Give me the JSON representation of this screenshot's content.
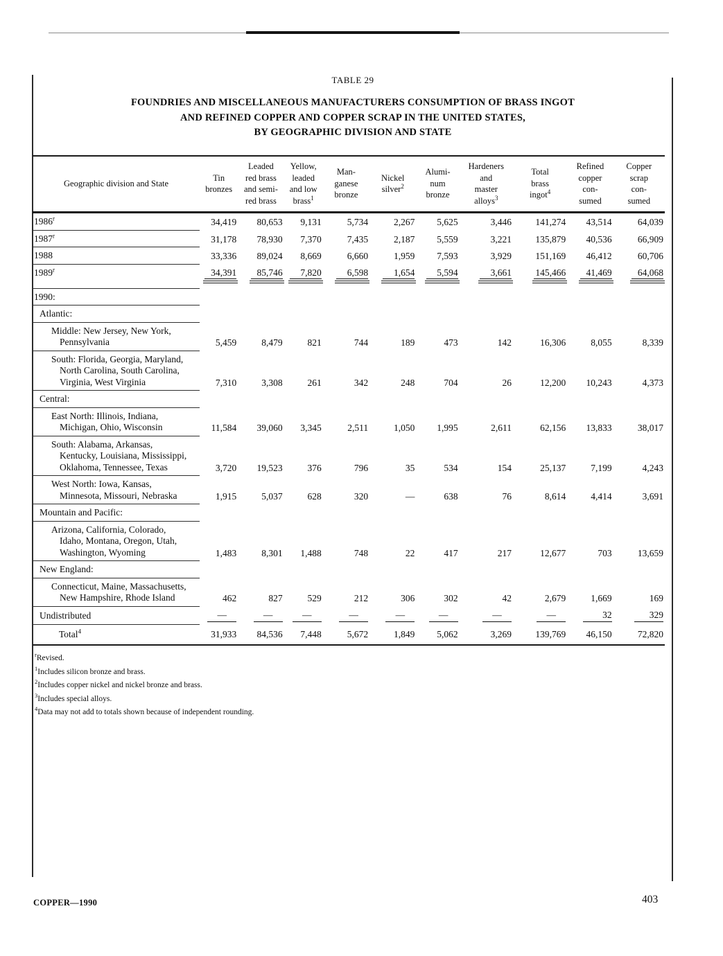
{
  "page": {
    "table_label": "TABLE 29",
    "title_lines": [
      "FOUNDRIES AND MISCELLANEOUS MANUFACTURERS CONSUMPTION OF BRASS INGOT",
      "AND REFINED COPPER AND COPPER SCRAP IN THE UNITED STATES,",
      "BY GEOGRAPHIC DIVISION AND STATE"
    ],
    "footer_left": "COPPER—1990",
    "page_number": "403"
  },
  "table": {
    "stub_header": "Geographic division and State",
    "columns": [
      {
        "lines": [
          "Tin",
          "bronzes"
        ]
      },
      {
        "lines": [
          "Leaded",
          "red brass",
          "and semi-",
          "red brass"
        ]
      },
      {
        "lines": [
          "Yellow,",
          "leaded",
          "and low",
          "brass"
        ],
        "sup": "1"
      },
      {
        "lines": [
          "Man-",
          "ganese",
          "bronze"
        ]
      },
      {
        "lines": [
          "Nickel",
          "silver"
        ],
        "sup": "2"
      },
      {
        "lines": [
          "Alumi-",
          "num",
          "bronze"
        ]
      },
      {
        "lines": [
          "Hardeners",
          "and",
          "master",
          "alloys"
        ],
        "sup": "3"
      },
      {
        "lines": [
          "Total",
          "brass",
          "ingot"
        ],
        "sup": "4"
      },
      {
        "lines": [
          "Refined",
          "copper",
          "con-",
          "sumed"
        ]
      },
      {
        "lines": [
          "Copper",
          "scrap",
          "con-",
          "sumed"
        ]
      }
    ],
    "rows": [
      {
        "type": "year",
        "label_lines": [
          "1986"
        ],
        "sup": "r",
        "values": [
          "34,419",
          "80,653",
          "9,131",
          "5,734",
          "2,267",
          "5,625",
          "3,446",
          "141,274",
          "43,514",
          "64,039"
        ]
      },
      {
        "type": "year",
        "label_lines": [
          "1987"
        ],
        "sup": "r",
        "values": [
          "31,178",
          "78,930",
          "7,370",
          "7,435",
          "2,187",
          "5,559",
          "3,221",
          "135,879",
          "40,536",
          "66,909"
        ]
      },
      {
        "type": "year",
        "label_lines": [
          "1988"
        ],
        "values": [
          "33,336",
          "89,024",
          "8,669",
          "6,660",
          "1,959",
          "7,593",
          "3,929",
          "151,169",
          "46,412",
          "60,706"
        ]
      },
      {
        "type": "year",
        "label_lines": [
          "1989"
        ],
        "sup": "r",
        "value_style": "double-rule",
        "values": [
          "34,391",
          "85,746",
          "7,820",
          "6,598",
          "1,654",
          "5,594",
          "3,661",
          "145,466",
          "41,469",
          "64,068"
        ]
      },
      {
        "type": "year",
        "label_lines": [
          "1990:"
        ]
      },
      {
        "type": "section",
        "label_lines": [
          "Atlantic:"
        ]
      },
      {
        "type": "data",
        "label_lines": [
          "Middle: New Jersey, New York,",
          "Pennsylvania"
        ],
        "values": [
          "5,459",
          "8,479",
          "821",
          "744",
          "189",
          "473",
          "142",
          "16,306",
          "8,055",
          "8,339"
        ]
      },
      {
        "type": "data",
        "label_lines": [
          "South: Florida, Georgia, Maryland,",
          "North Carolina, South Carolina,",
          "Virginia, West Virginia"
        ],
        "values": [
          "7,310",
          "3,308",
          "261",
          "342",
          "248",
          "704",
          "26",
          "12,200",
          "10,243",
          "4,373"
        ]
      },
      {
        "type": "section",
        "label_lines": [
          "Central:"
        ]
      },
      {
        "type": "data",
        "label_lines": [
          "East North: Illinois, Indiana,",
          "Michigan, Ohio, Wisconsin"
        ],
        "values": [
          "11,584",
          "39,060",
          "3,345",
          "2,511",
          "1,050",
          "1,995",
          "2,611",
          "62,156",
          "13,833",
          "38,017"
        ]
      },
      {
        "type": "data",
        "label_lines": [
          "South: Alabama, Arkansas,",
          "Kentucky, Louisiana, Mississippi,",
          "Oklahoma, Tennessee, Texas"
        ],
        "values": [
          "3,720",
          "19,523",
          "376",
          "796",
          "35",
          "534",
          "154",
          "25,137",
          "7,199",
          "4,243"
        ]
      },
      {
        "type": "data",
        "label_lines": [
          "West North: Iowa, Kansas,",
          "Minnesota, Missouri, Nebraska"
        ],
        "values": [
          "1,915",
          "5,037",
          "628",
          "320",
          "—",
          "638",
          "76",
          "8,614",
          "4,414",
          "3,691"
        ]
      },
      {
        "type": "section",
        "label_lines": [
          "Mountain and Pacific:"
        ]
      },
      {
        "type": "data",
        "label_lines": [
          "Arizona, California, Colorado,",
          "Idaho, Montana, Oregon, Utah,",
          "Washington, Wyoming"
        ],
        "values": [
          "1,483",
          "8,301",
          "1,488",
          "748",
          "22",
          "417",
          "217",
          "12,677",
          "703",
          "13,659"
        ]
      },
      {
        "type": "section",
        "label_lines": [
          "New England:"
        ]
      },
      {
        "type": "data",
        "label_lines": [
          "Connecticut, Maine, Massachusetts,",
          "New Hampshire, Rhode Island"
        ],
        "values": [
          "462",
          "827",
          "529",
          "212",
          "306",
          "302",
          "42",
          "2,679",
          "1,669",
          "169"
        ]
      },
      {
        "type": "section",
        "label_lines": [
          "Undistributed"
        ],
        "value_style": "rule-under",
        "values": [
          "—",
          "—",
          "—",
          "—",
          "—",
          "—",
          "—",
          "—",
          "32",
          "329"
        ]
      },
      {
        "type": "total",
        "label_lines": [
          "Total"
        ],
        "sup": "4",
        "values": [
          "31,933",
          "84,536",
          "7,448",
          "5,672",
          "1,849",
          "5,062",
          "3,269",
          "139,769",
          "46,150",
          "72,820"
        ]
      }
    ]
  },
  "footnotes": [
    {
      "sup": "r",
      "text": "Revised."
    },
    {
      "sup": "1",
      "text": "Includes silicon bronze and brass."
    },
    {
      "sup": "2",
      "text": "Includes copper nickel and nickel bronze and brass."
    },
    {
      "sup": "3",
      "text": "Includes special alloys."
    },
    {
      "sup": "4",
      "text": "Data may not add to totals shown because of independent rounding."
    }
  ]
}
